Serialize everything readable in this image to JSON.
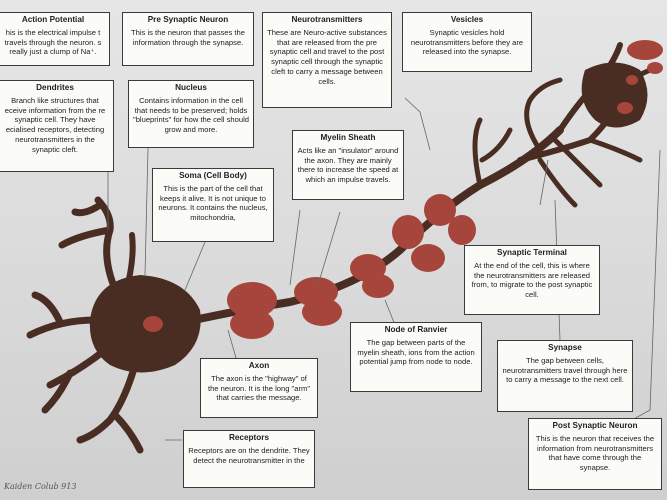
{
  "labels": {
    "action_potential": {
      "title": "Action Potential",
      "body": "his is the electrical impulse t travels through the neuron. s really just a clump of Na⁺."
    },
    "pre_synaptic": {
      "title": "Pre Synaptic Neuron",
      "body": "This is the neuron that passes the information through the synapse."
    },
    "neurotransmitters": {
      "title": "Neurotransmitters",
      "body": "These are Neuro-active substances that are released from the pre synaptic cell and travel to the post synaptic cell through the synaptic cleft to carry a message between cells."
    },
    "vesicles": {
      "title": "Vesicles",
      "body": "Synaptic vesicles hold neurotransmitters before they are released into the synapse."
    },
    "dendrites": {
      "title": "Dendrites",
      "body": "Branch like structures that eceive information from the re synaptic cell. They have ecialised receptors, detecting neurotransmitters in the synaptic cleft."
    },
    "nucleus": {
      "title": "Nucleus",
      "body": "Contains information in the cell that needs to be preserved; holds \"blueprints\" for how the cell should grow and more."
    },
    "myelin": {
      "title": "Myelin Sheath",
      "body": "Acts like an \"insulator\" around the axon. They are mainly there to increase the speed at which an impulse travels."
    },
    "soma": {
      "title": "Soma (Cell Body)",
      "body": "This is the part of the cell that keeps it alive. It is not unique to neurons. It contains the nucleus, mitochondria,"
    },
    "synaptic_terminal": {
      "title": "Synaptic Terminal",
      "body": "At the end of the cell, this is where the neurotransmitters are released from, to migrate to the post synaptic cell."
    },
    "node_ranvier": {
      "title": "Node of Ranvier",
      "body": "The gap between parts of the myelin sheath, ions from the action potential jump from node to node."
    },
    "axon": {
      "title": "Axon",
      "body": "The axon is the \"highway\" of the neuron. It is the long \"arm\" that carries the message."
    },
    "synapse": {
      "title": "Synapse",
      "body": "The gap between cells, neurotransmitters travel through here to carry a message to the next cell."
    },
    "receptors": {
      "title": "Receptors",
      "body": "Receptors are on the dendrite. They detect the neurotransmitter in the"
    },
    "post_synaptic": {
      "title": "Post Synaptic Neuron",
      "body": "This is the neuron that receives the information from neurotransmitters that have come through the synapse."
    }
  },
  "signature": "Kaiden Colub 913",
  "colors": {
    "clay": "#4a2d22",
    "myelin": "#a6453c",
    "paper": "#fbfbf8",
    "background": "#dcdcdc"
  }
}
